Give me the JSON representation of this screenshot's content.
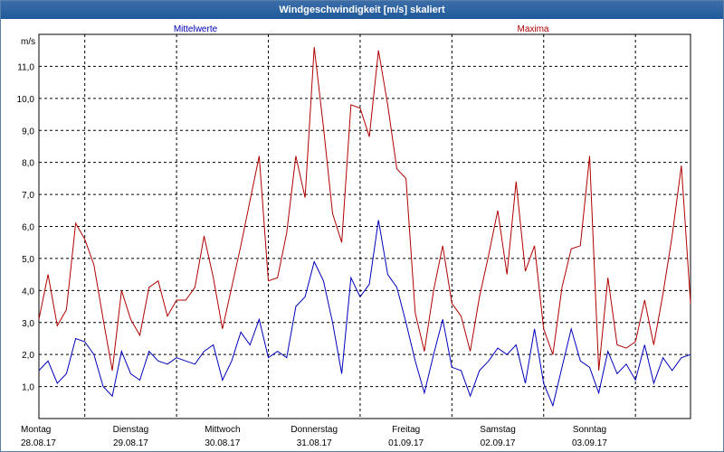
{
  "window": {
    "title": "Windgeschwindigkeit [m/s] skaliert"
  },
  "colors": {
    "mean": "#0000bb",
    "max": "#b00000",
    "grid": "#000000"
  },
  "chart_data": {
    "type": "line",
    "ylabel": "m/s",
    "ylim": [
      0,
      12
    ],
    "yticks": [
      "1,0",
      "2,0",
      "3,0",
      "4,0",
      "5,0",
      "6,0",
      "7,0",
      "8,0",
      "9,0",
      "10,0",
      "11,0"
    ],
    "xlim": [
      0,
      7.1
    ],
    "day_ticks": [
      {
        "day": "Montag",
        "date": "28.08.17"
      },
      {
        "day": "Dienstag",
        "date": "29.08.17"
      },
      {
        "day": "Mittwoch",
        "date": "30.08.17"
      },
      {
        "day": "Donnerstag",
        "date": "31.08.17"
      },
      {
        "day": "Freitag",
        "date": "01.09.17"
      },
      {
        "day": "Samstag",
        "date": "02.09.17"
      },
      {
        "day": "Sonntag",
        "date": "03.09.17"
      }
    ],
    "grid": true,
    "series": [
      {
        "name": "Mittelwerte",
        "x": [
          0.0,
          0.1,
          0.2,
          0.3,
          0.4,
          0.5,
          0.6,
          0.7,
          0.8,
          0.9,
          1.0,
          1.1,
          1.2,
          1.3,
          1.4,
          1.5,
          1.6,
          1.7,
          1.8,
          1.9,
          2.0,
          2.1,
          2.2,
          2.3,
          2.4,
          2.5,
          2.6,
          2.7,
          2.8,
          2.9,
          3.0,
          3.1,
          3.2,
          3.3,
          3.4,
          3.5,
          3.6,
          3.7,
          3.8,
          3.9,
          4.0,
          4.1,
          4.2,
          4.3,
          4.4,
          4.5,
          4.6,
          4.7,
          4.8,
          4.9,
          5.0,
          5.1,
          5.2,
          5.3,
          5.4,
          5.5,
          5.6,
          5.7,
          5.8,
          5.9,
          6.0,
          6.1,
          6.2,
          6.3,
          6.4,
          6.5,
          6.6,
          6.7,
          6.8,
          6.9,
          7.0,
          7.1
        ],
        "values": [
          1.5,
          1.8,
          1.1,
          1.4,
          2.5,
          2.4,
          2.0,
          1.0,
          0.7,
          2.1,
          1.4,
          1.2,
          2.1,
          1.8,
          1.7,
          1.9,
          1.8,
          1.7,
          2.1,
          2.3,
          1.2,
          1.8,
          2.7,
          2.3,
          3.1,
          1.9,
          2.1,
          1.9,
          3.5,
          3.8,
          4.9,
          4.3,
          3.0,
          1.4,
          4.4,
          3.8,
          4.2,
          6.2,
          4.5,
          4.1,
          3.0,
          1.8,
          0.8,
          2.0,
          3.1,
          1.6,
          1.5,
          0.7,
          1.5,
          1.8,
          2.2,
          2.0,
          2.3,
          1.1,
          2.8,
          1.1,
          0.4,
          1.6,
          2.8,
          1.8,
          1.6,
          0.8,
          2.1,
          1.4,
          1.7,
          1.2,
          2.3,
          1.1,
          1.9,
          1.5,
          1.9,
          2.0
        ]
      },
      {
        "name": "Maxima",
        "x": [
          0.0,
          0.1,
          0.2,
          0.3,
          0.4,
          0.5,
          0.6,
          0.7,
          0.8,
          0.9,
          1.0,
          1.1,
          1.2,
          1.3,
          1.4,
          1.5,
          1.6,
          1.7,
          1.8,
          1.9,
          2.0,
          2.1,
          2.2,
          2.3,
          2.4,
          2.5,
          2.6,
          2.7,
          2.8,
          2.9,
          3.0,
          3.1,
          3.2,
          3.3,
          3.4,
          3.5,
          3.6,
          3.7,
          3.8,
          3.9,
          4.0,
          4.1,
          4.2,
          4.3,
          4.4,
          4.5,
          4.6,
          4.7,
          4.8,
          4.9,
          5.0,
          5.1,
          5.2,
          5.3,
          5.4,
          5.5,
          5.6,
          5.7,
          5.8,
          5.9,
          6.0,
          6.1,
          6.2,
          6.3,
          6.4,
          6.5,
          6.6,
          6.7,
          6.8,
          6.9,
          7.0,
          7.1
        ],
        "values": [
          3.1,
          4.5,
          2.9,
          3.4,
          6.1,
          5.6,
          4.8,
          3.1,
          1.5,
          4.0,
          3.1,
          2.6,
          4.1,
          4.3,
          3.2,
          3.7,
          3.7,
          4.1,
          5.7,
          4.4,
          2.8,
          4.1,
          5.4,
          6.8,
          8.2,
          4.3,
          4.4,
          5.8,
          8.2,
          6.9,
          11.6,
          9.1,
          6.4,
          5.5,
          9.8,
          9.7,
          8.8,
          11.5,
          9.8,
          7.8,
          7.5,
          3.3,
          2.1,
          4.0,
          5.4,
          3.6,
          3.2,
          2.1,
          3.8,
          5.1,
          6.5,
          4.5,
          7.4,
          4.6,
          5.4,
          2.8,
          2.0,
          4.1,
          5.3,
          5.4,
          8.2,
          1.5,
          4.4,
          2.3,
          2.2,
          2.4,
          3.7,
          2.3,
          3.9,
          5.7,
          7.9,
          3.6
        ]
      }
    ]
  }
}
